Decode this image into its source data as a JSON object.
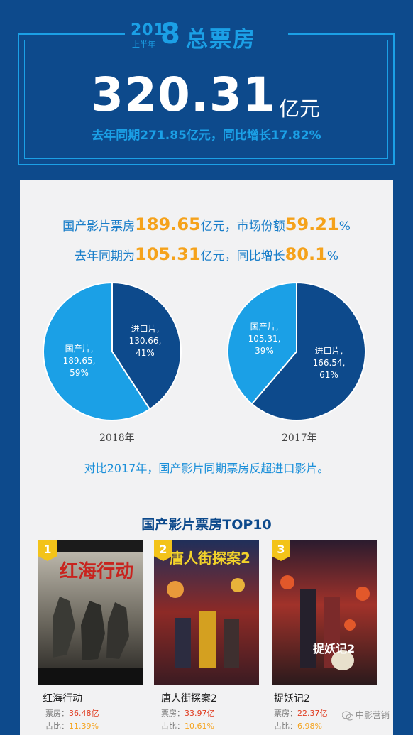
{
  "header": {
    "year_part_a": "201",
    "year_part_b": "8",
    "half_year_label": "上半年",
    "title": "总票房",
    "total_value": "320.31",
    "total_unit": "亿元",
    "comparison": "去年同期271.85亿元，同比增长17.82%"
  },
  "stats": {
    "line1_prefix": "国产影片票房",
    "line1_value": "189.65",
    "line1_mid": "亿元，市场份额",
    "line1_share": "59.21",
    "line1_suffix": "%",
    "line2_prefix": "去年同期为",
    "line2_value": "105.31",
    "line2_mid": "亿元，同比增长",
    "line2_growth": "80.1",
    "line2_suffix": "%"
  },
  "chart_data": [
    {
      "type": "pie",
      "title": "2018年",
      "slices": [
        {
          "label": "进口片",
          "value": 130.66,
          "percent": "41%",
          "color": "#0d4a8c"
        },
        {
          "label": "国产片",
          "value": 189.65,
          "percent": "59%",
          "color": "#1ba0e6"
        }
      ]
    },
    {
      "type": "pie",
      "title": "2017年",
      "slices": [
        {
          "label": "进口片",
          "value": 166.54,
          "percent": "61%",
          "color": "#0d4a8c"
        },
        {
          "label": "国产片",
          "value": 105.31,
          "percent": "39%",
          "color": "#1ba0e6"
        }
      ]
    }
  ],
  "compare_note": "对比2017年，国产影片同期票房反超进口影片。",
  "top10": {
    "title": "国产影片票房TOP10",
    "box_label": "票房：",
    "share_label": "占比：",
    "movies": [
      {
        "rank": "1",
        "name": "红海行动",
        "box": "36.48亿",
        "share": "11.39%",
        "poster_title": "红海行动"
      },
      {
        "rank": "2",
        "name": "唐人街探案2",
        "box": "33.97亿",
        "share": "10.61%",
        "poster_title": "唐人街探案2"
      },
      {
        "rank": "3",
        "name": "捉妖记2",
        "box": "22.37亿",
        "share": "6.98%",
        "poster_title": "捉妖记2"
      }
    ]
  },
  "watermark": "中影营销"
}
